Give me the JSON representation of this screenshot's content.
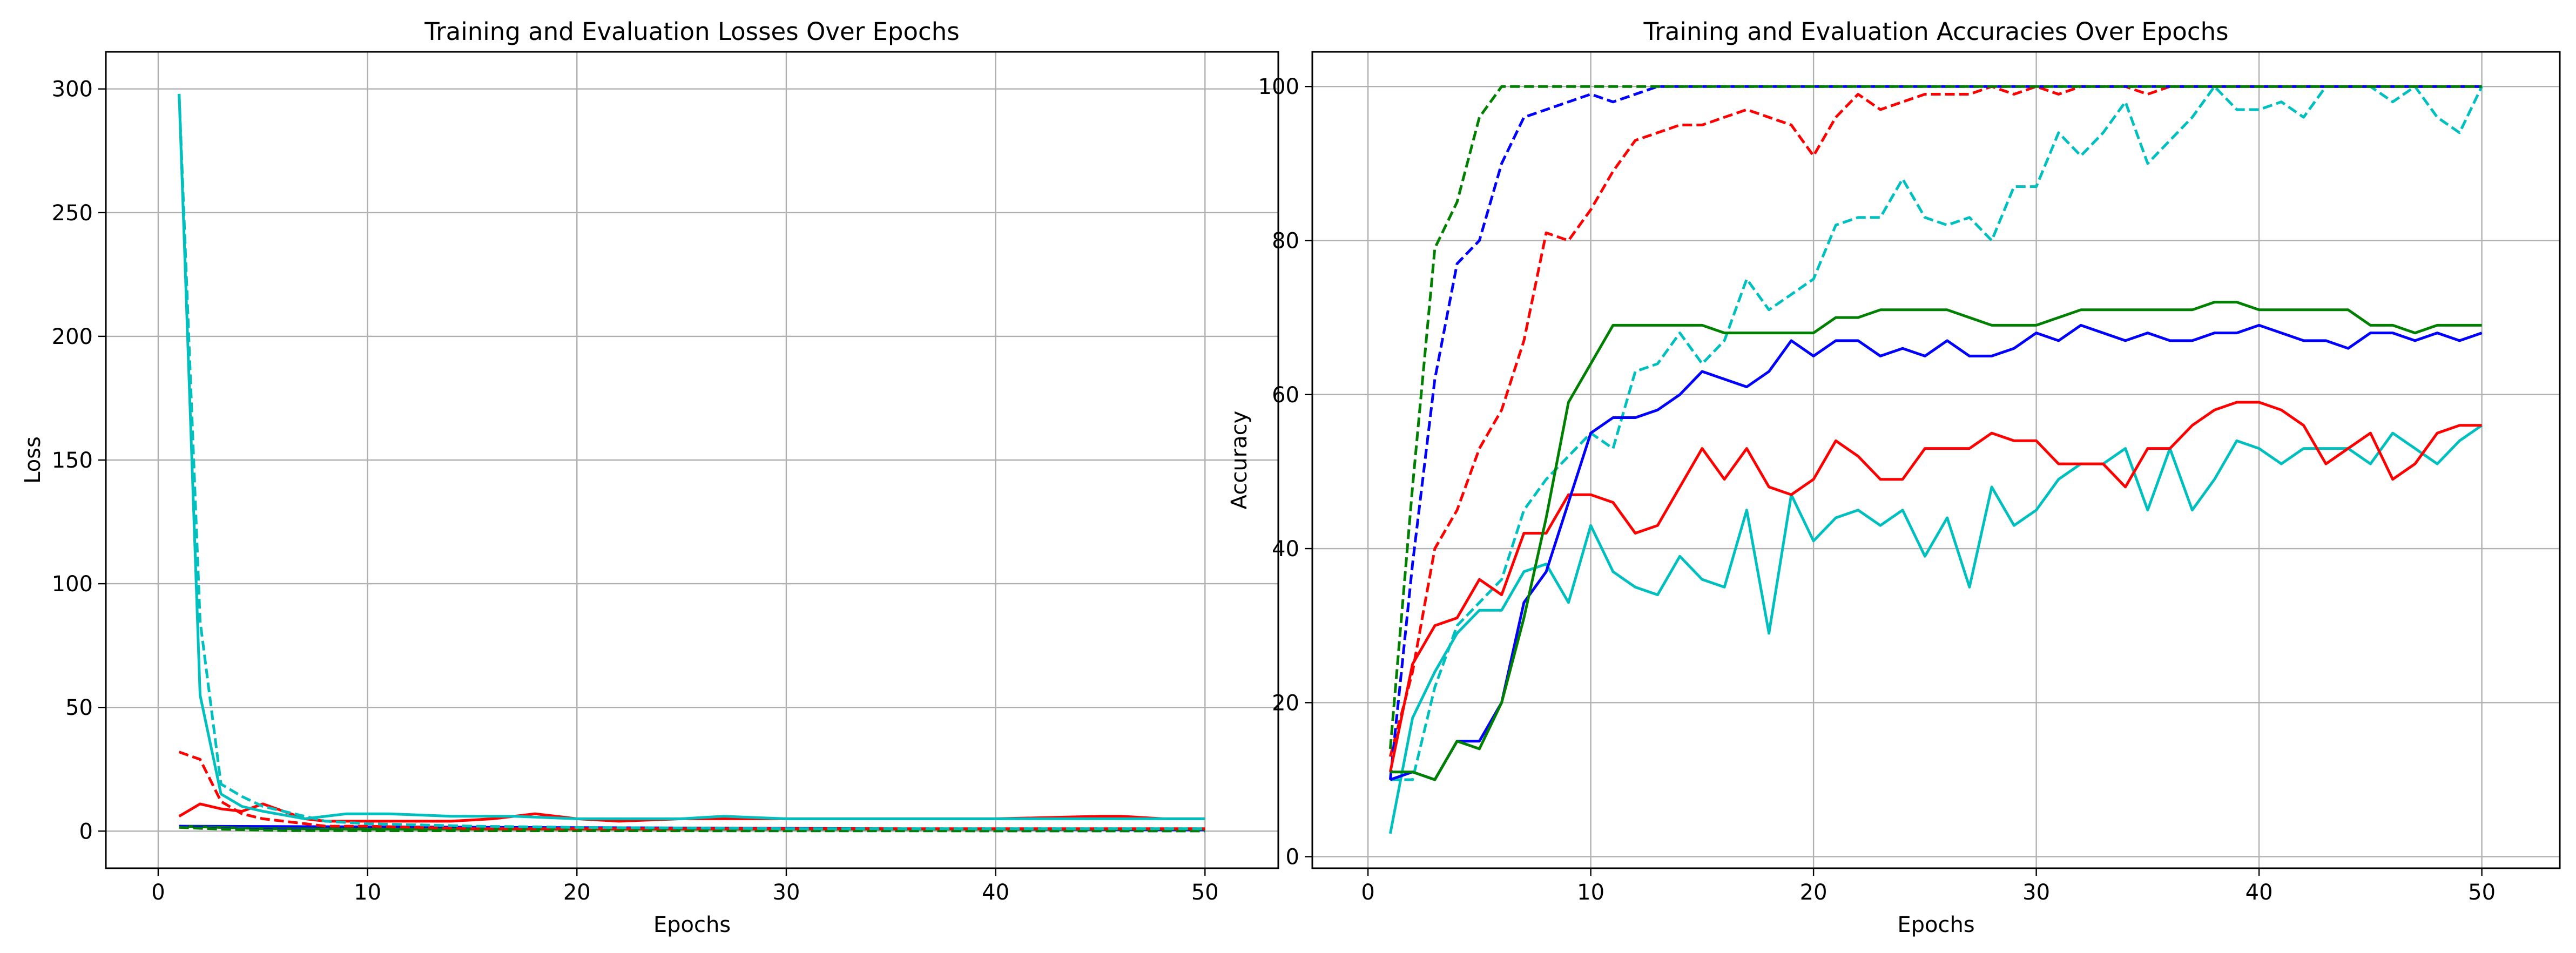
{
  "chart_data": [
    {
      "type": "line",
      "title": "Training and Evaluation Losses Over Epochs",
      "xlabel": "Epochs",
      "ylabel": "Loss",
      "xlim": [
        -2.5,
        53.5
      ],
      "ylim": [
        -15,
        315
      ],
      "xticks": [
        0,
        10,
        20,
        30,
        40,
        50
      ],
      "yticks": [
        0,
        50,
        100,
        150,
        200,
        250,
        300
      ],
      "grid": true,
      "legend": "none",
      "series": [
        {
          "color": "#0000ff",
          "style": "solid",
          "x": [
            1,
            50
          ],
          "y": [
            2,
            0.5
          ]
        },
        {
          "color": "#008000",
          "style": "solid",
          "x": [
            1,
            5,
            10,
            20,
            30,
            40,
            50
          ],
          "y": [
            2,
            1,
            0.8,
            0.8,
            0.8,
            0.8,
            0.8
          ]
        },
        {
          "color": "#0000ff",
          "style": "dashed",
          "x": [
            1,
            3,
            6,
            10,
            50
          ],
          "y": [
            2,
            1,
            0.5,
            0.2,
            0.1
          ]
        },
        {
          "color": "#008000",
          "style": "dashed",
          "x": [
            1,
            3,
            6,
            50
          ],
          "y": [
            1.5,
            0.8,
            0.2,
            0.1
          ]
        },
        {
          "color": "#ff0000",
          "style": "solid",
          "x": [
            1,
            2,
            3,
            4,
            5,
            6,
            7,
            8,
            10,
            12,
            14,
            16,
            18,
            20,
            22,
            25,
            28,
            30,
            35,
            40,
            45,
            46,
            48,
            50
          ],
          "y": [
            6,
            11,
            9,
            8,
            11,
            8,
            5,
            4,
            4,
            4,
            4,
            5,
            7,
            5,
            4,
            5,
            5,
            5,
            5,
            5,
            6,
            6,
            5,
            5
          ]
        },
        {
          "color": "#00bfbf",
          "style": "solid",
          "x": [
            1,
            2,
            3,
            4,
            5,
            7,
            9,
            11,
            14,
            17,
            20,
            25,
            27,
            30,
            35,
            40,
            45,
            50
          ],
          "y": [
            298,
            55,
            15,
            10,
            8,
            5,
            7,
            7,
            6,
            6,
            5,
            5,
            6,
            5,
            5,
            5,
            5,
            5
          ]
        },
        {
          "color": "#ff0000",
          "style": "dashed",
          "x": [
            1,
            2,
            3,
            4,
            5,
            6,
            8,
            10,
            15,
            20,
            30,
            40,
            50
          ],
          "y": [
            32,
            29,
            12,
            7,
            5,
            4,
            2,
            2,
            1,
            1,
            1,
            1,
            1
          ]
        },
        {
          "color": "#00bfbf",
          "style": "dashed",
          "x": [
            1,
            2,
            3,
            4,
            5,
            6,
            7,
            8,
            10,
            15,
            20,
            30,
            40,
            50
          ],
          "y": [
            298,
            85,
            19,
            14,
            10,
            8,
            6,
            4,
            3,
            2,
            1.5,
            1,
            1,
            1
          ]
        }
      ]
    },
    {
      "type": "line",
      "title": "Training and Evaluation Accuracies Over Epochs",
      "xlabel": "Epochs",
      "ylabel": "Accuracy",
      "xlim": [
        -2.5,
        53.5
      ],
      "ylim": [
        -1.5,
        104.5
      ],
      "xticks": [
        0,
        10,
        20,
        30,
        40,
        50
      ],
      "yticks": [
        0,
        20,
        40,
        60,
        80,
        100
      ],
      "grid": true,
      "legend": "none",
      "series": [
        {
          "color": "#00bfbf",
          "style": "dashed",
          "x": [
            1,
            2,
            3,
            4,
            5,
            6,
            7,
            8,
            9,
            10,
            11,
            12,
            13,
            14,
            15,
            16,
            17,
            18,
            19,
            20,
            21,
            22,
            23,
            24,
            25,
            26,
            27,
            28,
            29,
            30,
            31,
            32,
            33,
            34,
            35,
            36,
            37,
            38,
            39,
            40,
            41,
            42,
            43,
            44,
            45,
            46,
            47,
            48,
            49,
            50
          ],
          "y": [
            10,
            10,
            22,
            30,
            33,
            36,
            45,
            49,
            52,
            55,
            53,
            63,
            64,
            68,
            64,
            67,
            75,
            71,
            73,
            75,
            82,
            83,
            83,
            88,
            83,
            82,
            83,
            80,
            87,
            87,
            94,
            91,
            94,
            98,
            90,
            93,
            96,
            100,
            97,
            97,
            98,
            96,
            100,
            100,
            100,
            98,
            100,
            96,
            94,
            100
          ]
        },
        {
          "color": "#ff0000",
          "style": "dashed",
          "x": [
            1,
            2,
            3,
            4,
            5,
            6,
            7,
            8,
            9,
            10,
            11,
            12,
            13,
            14,
            15,
            16,
            17,
            18,
            19,
            20,
            21,
            22,
            23,
            24,
            25,
            26,
            27,
            28,
            29,
            30,
            31,
            32,
            33,
            34,
            35,
            36,
            37,
            38,
            50
          ],
          "y": [
            13,
            24,
            40,
            45,
            53,
            58,
            67,
            81,
            80,
            84,
            89,
            93,
            94,
            95,
            95,
            96,
            97,
            96,
            95,
            91,
            96,
            99,
            97,
            98,
            99,
            99,
            99,
            100,
            99,
            100,
            99,
            100,
            100,
            100,
            99,
            100,
            100,
            100,
            100
          ]
        },
        {
          "color": "#0000ff",
          "style": "dashed",
          "x": [
            1,
            2,
            3,
            4,
            5,
            6,
            7,
            8,
            9,
            10,
            11,
            12,
            13,
            50
          ],
          "y": [
            10,
            38,
            62,
            77,
            80,
            90,
            96,
            97,
            98,
            99,
            98,
            99,
            100,
            100
          ]
        },
        {
          "color": "#008000",
          "style": "dashed",
          "x": [
            1,
            2,
            3,
            4,
            5,
            6,
            50
          ],
          "y": [
            14,
            48,
            79,
            85,
            96,
            100,
            100
          ]
        },
        {
          "color": "#00bfbf",
          "style": "solid",
          "x": [
            1,
            2,
            3,
            4,
            5,
            6,
            7,
            8,
            9,
            10,
            11,
            12,
            13,
            14,
            15,
            16,
            17,
            18,
            19,
            20,
            21,
            22,
            23,
            24,
            25,
            26,
            27,
            28,
            29,
            30,
            31,
            32,
            33,
            34,
            35,
            36,
            37,
            38,
            39,
            40,
            41,
            42,
            43,
            44,
            45,
            46,
            47,
            48,
            49,
            50
          ],
          "y": [
            3,
            18,
            24,
            29,
            32,
            32,
            37,
            38,
            33,
            43,
            37,
            35,
            34,
            39,
            36,
            35,
            45,
            29,
            47,
            41,
            44,
            45,
            43,
            45,
            39,
            44,
            35,
            48,
            43,
            45,
            49,
            51,
            51,
            53,
            45,
            53,
            45,
            49,
            54,
            53,
            51,
            53,
            53,
            53,
            51,
            55,
            53,
            51,
            54,
            56
          ]
        },
        {
          "color": "#ff0000",
          "style": "solid",
          "x": [
            1,
            2,
            3,
            4,
            5,
            6,
            7,
            8,
            9,
            10,
            11,
            12,
            13,
            14,
            15,
            16,
            17,
            18,
            19,
            20,
            21,
            22,
            23,
            24,
            25,
            26,
            27,
            28,
            29,
            30,
            31,
            32,
            33,
            34,
            35,
            36,
            37,
            38,
            39,
            40,
            41,
            42,
            43,
            44,
            45,
            46,
            47,
            48,
            49,
            50
          ],
          "y": [
            11,
            25,
            30,
            31,
            36,
            34,
            42,
            42,
            47,
            47,
            46,
            42,
            43,
            48,
            53,
            49,
            53,
            48,
            47,
            49,
            54,
            52,
            49,
            49,
            53,
            53,
            53,
            55,
            54,
            54,
            51,
            51,
            51,
            48,
            53,
            53,
            56,
            58,
            59,
            59,
            58,
            56,
            51,
            53,
            55,
            49,
            51,
            55,
            56,
            56
          ]
        },
        {
          "color": "#0000ff",
          "style": "solid",
          "x": [
            1,
            2,
            3,
            4,
            5,
            6,
            7,
            8,
            9,
            10,
            11,
            12,
            13,
            14,
            15,
            16,
            17,
            18,
            19,
            20,
            21,
            22,
            23,
            24,
            25,
            26,
            27,
            28,
            29,
            30,
            31,
            32,
            33,
            34,
            35,
            36,
            37,
            38,
            39,
            40,
            41,
            42,
            43,
            44,
            45,
            46,
            47,
            48,
            49,
            50
          ],
          "y": [
            10,
            11,
            10,
            15,
            15,
            20,
            33,
            37,
            46,
            55,
            57,
            57,
            58,
            60,
            63,
            62,
            61,
            63,
            67,
            65,
            67,
            67,
            65,
            66,
            65,
            67,
            65,
            65,
            66,
            68,
            67,
            69,
            68,
            67,
            68,
            67,
            67,
            68,
            68,
            69,
            68,
            67,
            67,
            66,
            68,
            68,
            67,
            68,
            67,
            68
          ]
        },
        {
          "color": "#008000",
          "style": "solid",
          "x": [
            1,
            2,
            3,
            4,
            5,
            6,
            7,
            8,
            9,
            10,
            11,
            12,
            13,
            14,
            15,
            16,
            17,
            18,
            19,
            20,
            21,
            22,
            23,
            24,
            25,
            26,
            27,
            28,
            29,
            30,
            31,
            32,
            33,
            34,
            35,
            36,
            37,
            38,
            39,
            40,
            41,
            42,
            43,
            44,
            45,
            46,
            47,
            48,
            49,
            50
          ],
          "y": [
            11,
            11,
            10,
            15,
            14,
            20,
            31,
            44,
            59,
            64,
            69,
            69,
            69,
            69,
            69,
            68,
            68,
            68,
            68,
            68,
            70,
            70,
            71,
            71,
            71,
            71,
            70,
            69,
            69,
            69,
            70,
            71,
            71,
            71,
            71,
            71,
            71,
            72,
            72,
            71,
            71,
            71,
            71,
            71,
            69,
            69,
            68,
            69,
            69,
            69
          ]
        }
      ]
    }
  ]
}
